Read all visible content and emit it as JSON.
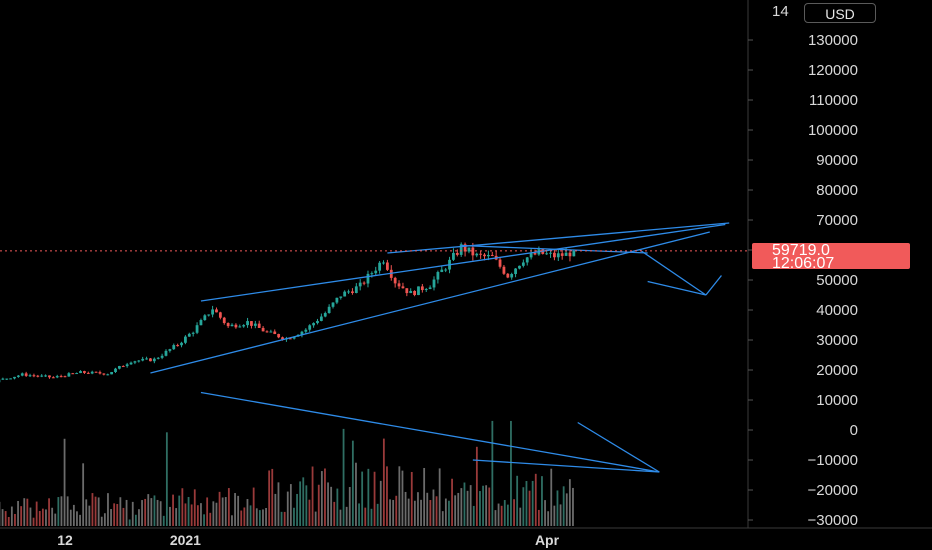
{
  "currency_button": "USD",
  "price_label": {
    "price": "59719.0",
    "countdown": "12:06:07",
    "color": "#f15a5a"
  },
  "colors": {
    "up": "#26a69a",
    "down": "#ef5350",
    "drawing": "#2e8be8",
    "axis_text": "#d9d9d9"
  },
  "chart_data": {
    "type": "candlestick",
    "title": "",
    "ylabel": "",
    "xlabel": "",
    "ylim": [
      -33000,
      145000
    ],
    "y_ticks": [
      -30000,
      -20000,
      -10000,
      0,
      10000,
      20000,
      30000,
      40000,
      50000,
      60000,
      70000,
      80000,
      90000,
      100000,
      110000,
      120000,
      130000
    ],
    "top_tick_partial": "14",
    "x_ticks": [
      {
        "label": "12",
        "date": "2020-12-01"
      },
      {
        "label": "2021",
        "date": "2021-01-01"
      },
      {
        "label": "Apr",
        "date": "2021-04-01"
      }
    ],
    "last_price": 59719.0,
    "price_series": [
      {
        "date": "2020-10-01",
        "close": 10700
      },
      {
        "date": "2020-10-10",
        "close": 10900
      },
      {
        "date": "2020-10-20",
        "close": 11500
      },
      {
        "date": "2020-10-28",
        "close": 13300
      },
      {
        "date": "2020-11-05",
        "close": 15200
      },
      {
        "date": "2020-11-12",
        "close": 16000
      },
      {
        "date": "2020-11-20",
        "close": 18500
      },
      {
        "date": "2020-11-28",
        "close": 17500
      },
      {
        "date": "2020-12-05",
        "close": 19200
      },
      {
        "date": "2020-12-12",
        "close": 18800
      },
      {
        "date": "2020-12-18",
        "close": 23000
      },
      {
        "date": "2020-12-24",
        "close": 23500
      },
      {
        "date": "2020-12-30",
        "close": 28500
      },
      {
        "date": "2021-01-03",
        "close": 33000
      },
      {
        "date": "2021-01-08",
        "close": 40500
      },
      {
        "date": "2021-01-12",
        "close": 34500
      },
      {
        "date": "2021-01-17",
        "close": 36000
      },
      {
        "date": "2021-01-22",
        "close": 32500
      },
      {
        "date": "2021-01-27",
        "close": 30500
      },
      {
        "date": "2021-02-01",
        "close": 33500
      },
      {
        "date": "2021-02-06",
        "close": 39000
      },
      {
        "date": "2021-02-10",
        "close": 45000
      },
      {
        "date": "2021-02-15",
        "close": 48000
      },
      {
        "date": "2021-02-21",
        "close": 57000
      },
      {
        "date": "2021-02-24",
        "close": 49500
      },
      {
        "date": "2021-02-28",
        "close": 45500
      },
      {
        "date": "2021-03-05",
        "close": 48500
      },
      {
        "date": "2021-03-10",
        "close": 56000
      },
      {
        "date": "2021-03-13",
        "close": 61000
      },
      {
        "date": "2021-03-17",
        "close": 58000
      },
      {
        "date": "2021-03-21",
        "close": 57500
      },
      {
        "date": "2021-03-25",
        "close": 51500
      },
      {
        "date": "2021-03-29",
        "close": 57000
      },
      {
        "date": "2021-04-02",
        "close": 59000
      },
      {
        "date": "2021-04-06",
        "close": 58000
      },
      {
        "date": "2021-04-09",
        "close": 58500
      },
      {
        "date": "2021-04-11",
        "close": 59719
      }
    ],
    "volume_bars": "shown as grey/red/green histogram at bottom of pane",
    "drawings": [
      {
        "type": "trend-line",
        "from": {
          "date": "2020-12-23",
          "value": 19000
        },
        "to": {
          "date": "2021-05-16",
          "value": 66000
        }
      },
      {
        "type": "trend-line",
        "from": {
          "date": "2021-01-05",
          "value": 43000
        },
        "to": {
          "date": "2021-05-20",
          "value": 68500
        }
      },
      {
        "type": "trend-line",
        "from": {
          "date": "2021-02-22",
          "value": 59000
        },
        "to": {
          "date": "2021-05-21",
          "value": 69000
        }
      },
      {
        "type": "trend-line",
        "from": {
          "date": "2021-03-13",
          "value": 61500
        },
        "to": {
          "date": "2021-04-30",
          "value": 59000
        }
      },
      {
        "type": "trend-line",
        "from": {
          "date": "2021-04-28",
          "value": 60000
        },
        "to": {
          "date": "2021-05-15",
          "value": 45000
        }
      },
      {
        "type": "trend-line",
        "from": {
          "date": "2021-04-30",
          "value": 49500
        },
        "to": {
          "date": "2021-05-15",
          "value": 45000
        }
      },
      {
        "type": "trend-line",
        "from": {
          "date": "2021-05-15",
          "value": 45000
        },
        "to": {
          "date": "2021-05-19",
          "value": 51500
        }
      },
      {
        "type": "trend-line",
        "from": {
          "date": "2021-01-05",
          "value": 12500
        },
        "to": {
          "date": "2021-05-03",
          "value": -14000
        }
      },
      {
        "type": "trend-line",
        "from": {
          "date": "2021-03-16",
          "value": -10000
        },
        "to": {
          "date": "2021-05-03",
          "value": -14000
        }
      },
      {
        "type": "trend-line",
        "from": {
          "date": "2021-04-12",
          "value": 2500
        },
        "to": {
          "date": "2021-05-03",
          "value": -14000
        }
      }
    ]
  }
}
